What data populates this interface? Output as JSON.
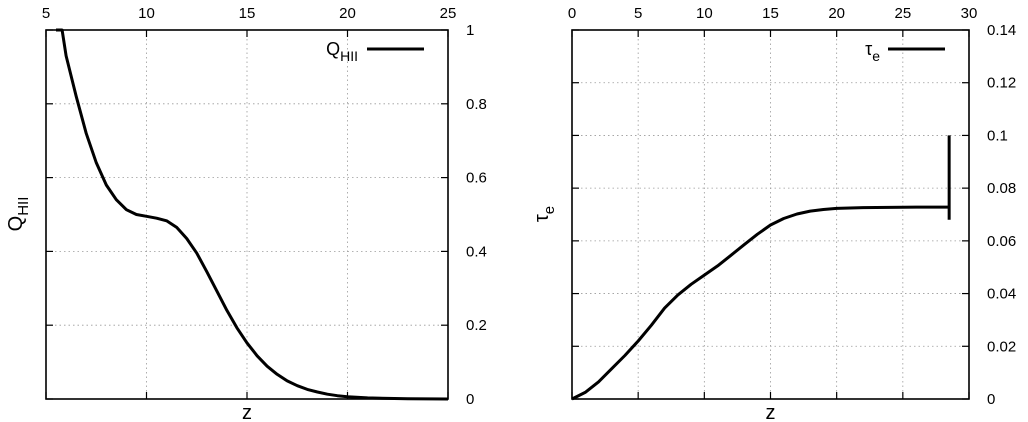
{
  "chart_data": [
    {
      "type": "line",
      "xlim": [
        5,
        25
      ],
      "ylim": [
        0,
        1
      ],
      "x_ticks": [
        5,
        10,
        15,
        20,
        25
      ],
      "x_ticks_top": [
        "5",
        "10",
        "15",
        "20",
        "25"
      ],
      "y_ticks": [
        0,
        0.2,
        0.4,
        0.6,
        0.8,
        1
      ],
      "y_ticks_right": [
        "0",
        "0.2",
        "0.4",
        "0.6",
        "0.8",
        "1"
      ],
      "xlabel": "z",
      "ylabel_main": "Q",
      "ylabel_sub": "HII",
      "grid": true,
      "legend_position": "top-right",
      "series": [
        {
          "legend_main": "Q",
          "legend_sub": "HII",
          "x": [
            5.5,
            5.8,
            6,
            6.5,
            7,
            7.5,
            8,
            8.5,
            9,
            9.5,
            10,
            10.5,
            11,
            11.5,
            12,
            12.5,
            13,
            13.5,
            14,
            14.5,
            15,
            15.5,
            16,
            16.5,
            17,
            17.5,
            18,
            18.5,
            19,
            19.5,
            20,
            21,
            22,
            23,
            24,
            25
          ],
          "y": [
            1.0,
            1.0,
            0.93,
            0.82,
            0.72,
            0.64,
            0.58,
            0.54,
            0.513,
            0.5,
            0.495,
            0.49,
            0.483,
            0.465,
            0.435,
            0.395,
            0.345,
            0.293,
            0.24,
            0.193,
            0.152,
            0.117,
            0.089,
            0.067,
            0.049,
            0.036,
            0.026,
            0.019,
            0.013,
            0.009,
            0.006,
            0.003,
            0.0015,
            0.0007,
            0.0003,
            0.0001
          ]
        }
      ]
    },
    {
      "type": "line",
      "xlim": [
        0,
        30
      ],
      "ylim": [
        0,
        0.14
      ],
      "x_ticks": [
        0,
        5,
        10,
        15,
        20,
        25,
        30
      ],
      "x_ticks_top": [
        "0",
        "5",
        "10",
        "15",
        "20",
        "25",
        "30"
      ],
      "y_ticks": [
        0,
        0.02,
        0.04,
        0.06,
        0.08,
        0.1,
        0.12,
        0.14
      ],
      "y_ticks_right": [
        "0",
        "0.02",
        "0.04",
        "0.06",
        "0.08",
        "0.1",
        "0.12",
        "0.14"
      ],
      "xlabel": "z",
      "ylabel_main": "τ",
      "ylabel_sub": "e",
      "grid": true,
      "legend_position": "top-right",
      "error_bar": {
        "x": 28.5,
        "y_low": 0.068,
        "y_high": 0.1
      },
      "series": [
        {
          "legend_main": "τ",
          "legend_sub": "e",
          "x": [
            0,
            1,
            2,
            3,
            4,
            5,
            6,
            7,
            8,
            9,
            10,
            11,
            12,
            13,
            14,
            15,
            16,
            17,
            18,
            19,
            20,
            22,
            24,
            26,
            28,
            28.5
          ],
          "y": [
            0,
            0.0025,
            0.0065,
            0.0115,
            0.0165,
            0.022,
            0.028,
            0.0345,
            0.0395,
            0.0435,
            0.047,
            0.0505,
            0.0545,
            0.0585,
            0.0625,
            0.066,
            0.0685,
            0.0702,
            0.0713,
            0.0719,
            0.0723,
            0.0726,
            0.0727,
            0.0728,
            0.0728,
            0.0728
          ]
        }
      ]
    }
  ]
}
